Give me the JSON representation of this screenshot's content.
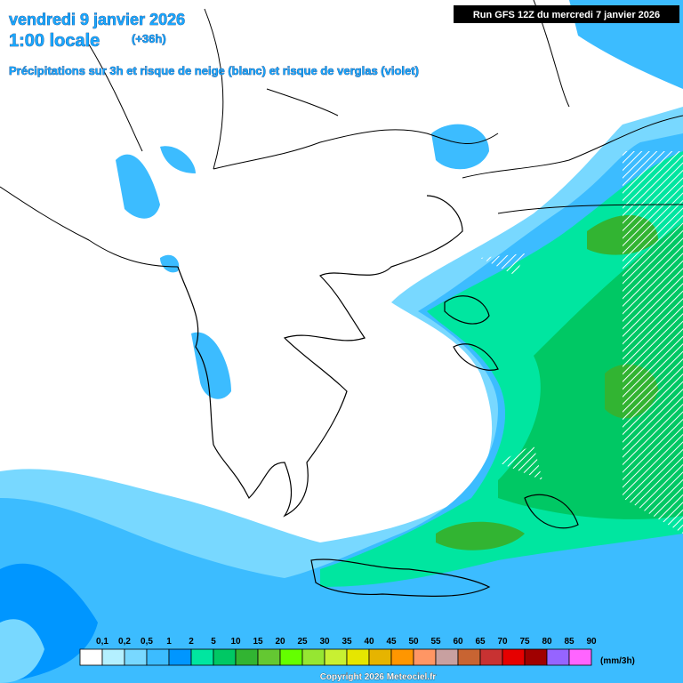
{
  "header": {
    "date": "vendredi 9 janvier 2026",
    "time": "1:00 locale",
    "offset": "(+36h)",
    "subtitle": "Précipitations sur 3h et risque de neige (blanc) et risque de verglas (violet)",
    "run": "Run GFS 12Z du mercredi 7 janvier 2026"
  },
  "legend": {
    "labels": [
      "0,1",
      "0,2",
      "0,5",
      "1",
      "2",
      "5",
      "10",
      "15",
      "20",
      "25",
      "30",
      "35",
      "40",
      "45",
      "50",
      "55",
      "60",
      "65",
      "70",
      "75",
      "80",
      "85",
      "90"
    ],
    "colors": [
      "#ffffff",
      "#b4f0ff",
      "#78d8ff",
      "#3cbcff",
      "#0096ff",
      "#00e6a0",
      "#00c864",
      "#32b432",
      "#64c832",
      "#64ff00",
      "#96e632",
      "#c8f032",
      "#e6e600",
      "#e6b400",
      "#ff9600",
      "#ff9664",
      "#c8a0a0",
      "#c86432",
      "#c83232",
      "#e60000",
      "#a00000",
      "#9664ff",
      "#ff64ff"
    ],
    "unit": "(mm/3h)"
  },
  "footer": {
    "copyright": "Copyright 2026 Meteociel.fr"
  }
}
